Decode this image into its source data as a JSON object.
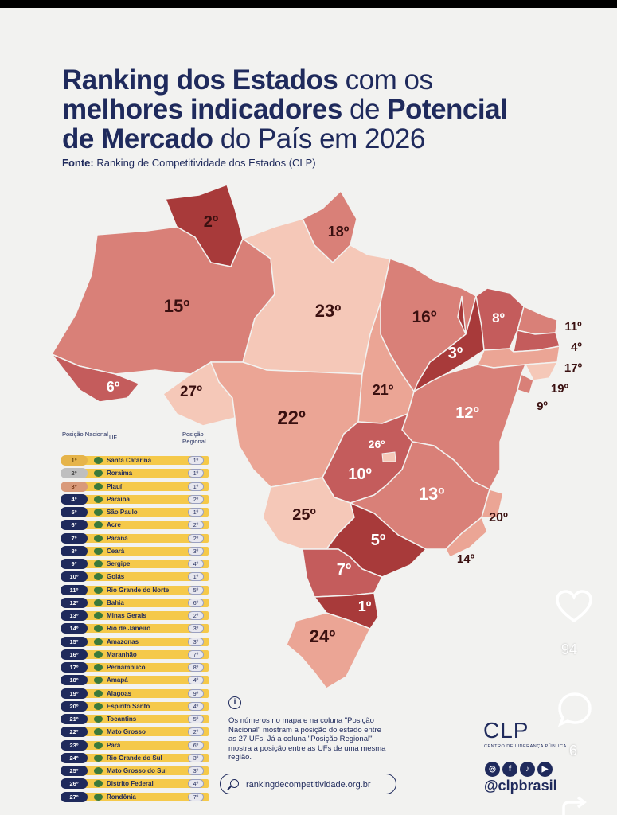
{
  "title": {
    "line1_bold": "Ranking dos Estados",
    "line1_normal": " com os",
    "line2_bold": "melhores indicadores",
    "line2_normal": " de ",
    "line2_bold2": "Potencial",
    "line3_bold": "de Mercado",
    "line3_normal": " do País em 2026"
  },
  "source": {
    "label": "Fonte:",
    "text": " Ranking de Competitividade dos Estados (CLP)"
  },
  "map_labels": {
    "roraima": "2º",
    "amapa": "18º",
    "amazonas": "15º",
    "para": "23º",
    "maranhao": "16º",
    "piaui": "3º",
    "ceara": "8º",
    "rn": "11º",
    "paraiba": "4º",
    "pernambuco": "17º",
    "alagoas": "19º",
    "sergipe": "9º",
    "acre": "6º",
    "rondonia": "27º",
    "mato_grosso": "22º",
    "tocantins": "21º",
    "bahia": "12º",
    "df": "26º",
    "goias": "10º",
    "mg": "13º",
    "es": "20º",
    "ms": "25º",
    "sp": "5º",
    "rj": "14º",
    "parana": "7º",
    "sc": "1º",
    "rs": "24º"
  },
  "table": {
    "col_national": "Posição Nacional",
    "col_uf": "UF",
    "col_regional": "Posição Regional",
    "rows": [
      {
        "pos": "1º",
        "uf": "Santa Catarina",
        "reg": "1º"
      },
      {
        "pos": "2º",
        "uf": "Roraima",
        "reg": "1º"
      },
      {
        "pos": "3º",
        "uf": "Piauí",
        "reg": "1º"
      },
      {
        "pos": "4º",
        "uf": "Paraíba",
        "reg": "2º"
      },
      {
        "pos": "5º",
        "uf": "São Paulo",
        "reg": "1º"
      },
      {
        "pos": "6º",
        "uf": "Acre",
        "reg": "2º"
      },
      {
        "pos": "7º",
        "uf": "Paraná",
        "reg": "2º"
      },
      {
        "pos": "8º",
        "uf": "Ceará",
        "reg": "3º"
      },
      {
        "pos": "9º",
        "uf": "Sergipe",
        "reg": "4º"
      },
      {
        "pos": "10º",
        "uf": "Goiás",
        "reg": "1º"
      },
      {
        "pos": "11º",
        "uf": "Rio Grande do Norte",
        "reg": "5º"
      },
      {
        "pos": "12º",
        "uf": "Bahia",
        "reg": "6º"
      },
      {
        "pos": "13º",
        "uf": "Minas Gerais",
        "reg": "2º"
      },
      {
        "pos": "14º",
        "uf": "Rio de Janeiro",
        "reg": "3º"
      },
      {
        "pos": "15º",
        "uf": "Amazonas",
        "reg": "3º"
      },
      {
        "pos": "16º",
        "uf": "Maranhão",
        "reg": "7º"
      },
      {
        "pos": "17º",
        "uf": "Pernambuco",
        "reg": "8º"
      },
      {
        "pos": "18º",
        "uf": "Amapá",
        "reg": "4º"
      },
      {
        "pos": "19º",
        "uf": "Alagoas",
        "reg": "9º"
      },
      {
        "pos": "20º",
        "uf": "Espírito Santo",
        "reg": "4º"
      },
      {
        "pos": "21º",
        "uf": "Tocantins",
        "reg": "5º"
      },
      {
        "pos": "22º",
        "uf": "Mato Grosso",
        "reg": "2º"
      },
      {
        "pos": "23º",
        "uf": "Pará",
        "reg": "6º"
      },
      {
        "pos": "24º",
        "uf": "Rio Grande do Sul",
        "reg": "3º"
      },
      {
        "pos": "25º",
        "uf": "Mato Grosso do Sul",
        "reg": "3º"
      },
      {
        "pos": "26º",
        "uf": "Distrito Federal",
        "reg": "4º"
      },
      {
        "pos": "27º",
        "uf": "Rondônia",
        "reg": "7º"
      }
    ]
  },
  "note": "Os números no mapa e na coluna \"Posição Nacional\" mostram a posição do estado entre as 27 UFs. Já a coluna \"Posição Regional\" mostra a posição entre as UFs de uma mesma região.",
  "info_symbol": "i",
  "website": "rankingdecompetitividade.org.br",
  "brand": {
    "logo": "CLP",
    "subtitle": "CENTRO DE LIDERANÇA PÚBLICA",
    "handle": "@clpbrasil"
  },
  "social_icons": [
    "instagram-icon",
    "facebook-icon",
    "tiktok-icon",
    "youtube-icon"
  ],
  "overlay": {
    "likes": "94",
    "comments": "6"
  },
  "colors": {
    "navy": "#1f2a5c",
    "darkest": "#a83a3a",
    "dark": "#c45c5c",
    "mid": "#d98078",
    "light": "#eba595",
    "lightest": "#f5c8b8"
  }
}
